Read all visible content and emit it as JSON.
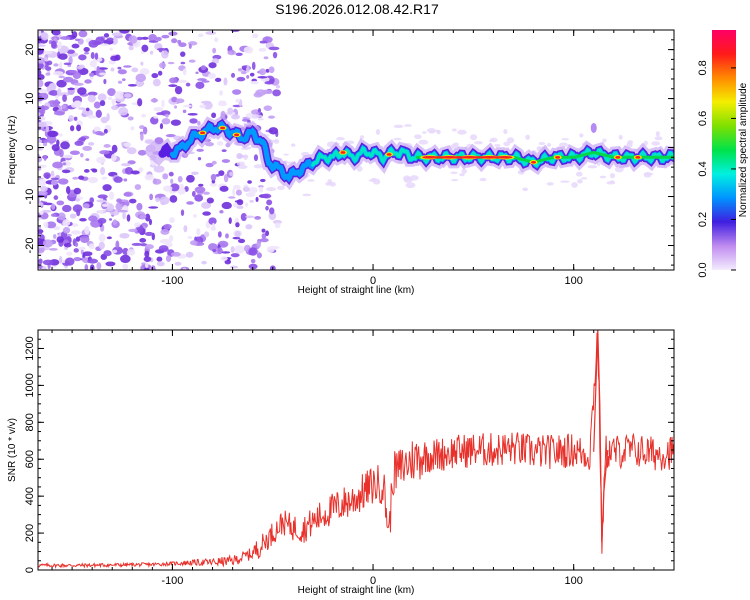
{
  "title": "S196.2026.012.08.42.R17",
  "colors": {
    "snr_line": "#e8312b",
    "scatter_purple": "#7a33e8",
    "scatter_light": "#c9a8f5",
    "frame": "#000000",
    "background": "#ffffff"
  },
  "chart_data": [
    {
      "type": "heatmap",
      "name": "spectrogram",
      "xlabel": "Height of straight line (km)",
      "ylabel": "Frequency (Hz)",
      "xlim": [
        -167,
        150
      ],
      "ylim": [
        -25,
        24
      ],
      "xticks": [
        -100,
        0,
        100
      ],
      "yticks": [
        20,
        10,
        0,
        -10,
        -20
      ],
      "ridge": {
        "x": [
          -100,
          -95,
          -90,
          -85,
          -80,
          -75,
          -70,
          -65,
          -60,
          -55,
          -52,
          -48,
          -45,
          -42,
          -38,
          -34,
          -30,
          -25,
          -20,
          -15,
          -10,
          -5,
          0,
          5,
          10,
          15,
          20,
          30,
          40,
          50,
          60,
          70,
          80,
          90,
          100,
          110,
          120,
          130,
          140,
          148
        ],
        "y": [
          -1,
          0,
          2,
          3,
          4,
          4,
          3,
          2,
          3,
          1,
          -3,
          -4,
          -5,
          -6,
          -5,
          -4,
          -3,
          -2,
          -2,
          -1,
          -2,
          -1,
          -1,
          -2,
          -1,
          -1,
          -2,
          -2,
          -2,
          -2,
          -2,
          -2,
          -3,
          -2,
          -2,
          -1,
          -2,
          -2,
          -2,
          -2
        ]
      },
      "colorbar": {
        "label": "Normalized spectral amplitude",
        "range": [
          0.0,
          0.95
        ],
        "ticks": [
          0.0,
          0.2,
          0.4,
          0.6,
          0.8
        ],
        "tick_labels": [
          "0.0",
          "0.2",
          "0.4",
          "0.6",
          "0.8"
        ]
      }
    },
    {
      "type": "line",
      "name": "snr",
      "xlabel": "Height of straight line (km)",
      "ylabel": "SNR (10 * v/v)",
      "xlim": [
        -167,
        150
      ],
      "ylim": [
        0,
        1300
      ],
      "xticks": [
        -100,
        0,
        100
      ],
      "yticks": [
        0,
        200,
        400,
        600,
        800,
        1000,
        1200
      ],
      "series": [
        {
          "name": "SNR",
          "x": [
            -167,
            -150,
            -130,
            -110,
            -100,
            -90,
            -80,
            -70,
            -60,
            -55,
            -50,
            -45,
            -40,
            -35,
            -30,
            -25,
            -20,
            -15,
            -10,
            -5,
            0,
            5,
            8,
            10,
            15,
            20,
            25,
            30,
            40,
            50,
            60,
            70,
            80,
            90,
            100,
            108,
            112,
            114,
            116,
            120,
            130,
            140,
            150
          ],
          "values": [
            25,
            25,
            27,
            30,
            35,
            40,
            42,
            50,
            90,
            140,
            200,
            260,
            230,
            220,
            260,
            300,
            330,
            360,
            380,
            420,
            460,
            470,
            200,
            520,
            560,
            600,
            620,
            620,
            640,
            650,
            650,
            660,
            640,
            640,
            650,
            620,
            1300,
            150,
            640,
            640,
            650,
            630,
            640
          ]
        }
      ]
    }
  ]
}
